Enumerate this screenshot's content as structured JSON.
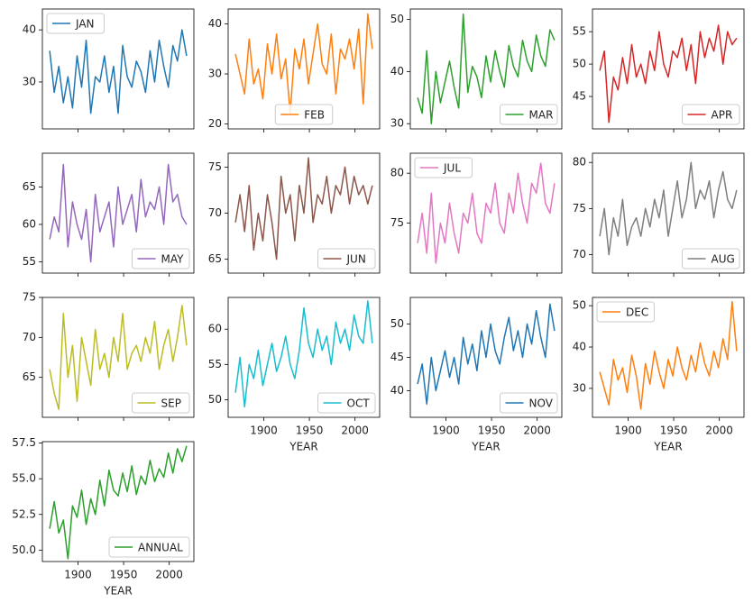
{
  "chart_data": [
    {
      "type": "line",
      "x": [
        1869,
        1874,
        1879,
        1884,
        1889,
        1894,
        1899,
        1904,
        1909,
        1914,
        1919,
        1924,
        1929,
        1934,
        1939,
        1944,
        1949,
        1954,
        1959,
        1964,
        1969,
        1974,
        1979,
        1984,
        1989,
        1994,
        1999,
        2004,
        2009,
        2014,
        2019
      ],
      "xlim": [
        1861,
        2027
      ],
      "xticks": [
        1900,
        1950,
        2000
      ],
      "ylim": [
        21,
        44
      ],
      "yticks": [
        30,
        40
      ],
      "legend": "upper left",
      "series": [
        {
          "name": "JAN",
          "color": "#1f77b4",
          "values": [
            36,
            28,
            33,
            26,
            31,
            25,
            35,
            29,
            38,
            24,
            31,
            30,
            35,
            28,
            33,
            24,
            37,
            31,
            29,
            34,
            32,
            28,
            36,
            30,
            38,
            33,
            29,
            37,
            34,
            40,
            35
          ]
        }
      ]
    },
    {
      "type": "line",
      "x": [
        1869,
        1874,
        1879,
        1884,
        1889,
        1894,
        1899,
        1904,
        1909,
        1914,
        1919,
        1924,
        1929,
        1934,
        1939,
        1944,
        1949,
        1954,
        1959,
        1964,
        1969,
        1974,
        1979,
        1984,
        1989,
        1994,
        1999,
        2004,
        2009,
        2014,
        2019
      ],
      "xlim": [
        1861,
        2027
      ],
      "xticks": [
        1900,
        1950,
        2000
      ],
      "ylim": [
        19,
        43
      ],
      "yticks": [
        20,
        30,
        40
      ],
      "legend": "lower center",
      "series": [
        {
          "name": "FEB",
          "color": "#ff7f0e",
          "values": [
            34,
            30,
            26,
            37,
            28,
            31,
            25,
            36,
            30,
            38,
            29,
            33,
            22,
            35,
            31,
            37,
            28,
            34,
            40,
            32,
            30,
            38,
            26,
            35,
            33,
            37,
            31,
            39,
            24,
            42,
            35
          ]
        }
      ]
    },
    {
      "type": "line",
      "x": [
        1869,
        1874,
        1879,
        1884,
        1889,
        1894,
        1899,
        1904,
        1909,
        1914,
        1919,
        1924,
        1929,
        1934,
        1939,
        1944,
        1949,
        1954,
        1959,
        1964,
        1969,
        1974,
        1979,
        1984,
        1989,
        1994,
        1999,
        2004,
        2009,
        2014,
        2019
      ],
      "xlim": [
        1861,
        2027
      ],
      "xticks": [
        1900,
        1950,
        2000
      ],
      "ylim": [
        29,
        52
      ],
      "yticks": [
        30,
        40,
        50
      ],
      "legend": "lower right",
      "series": [
        {
          "name": "MAR",
          "color": "#2ca02c",
          "values": [
            35,
            32,
            44,
            30,
            40,
            34,
            38,
            42,
            37,
            33,
            51,
            36,
            41,
            39,
            35,
            43,
            38,
            44,
            40,
            37,
            45,
            41,
            39,
            46,
            42,
            40,
            47,
            43,
            41,
            48,
            46
          ]
        }
      ]
    },
    {
      "type": "line",
      "x": [
        1869,
        1874,
        1879,
        1884,
        1889,
        1894,
        1899,
        1904,
        1909,
        1914,
        1919,
        1924,
        1929,
        1934,
        1939,
        1944,
        1949,
        1954,
        1959,
        1964,
        1969,
        1974,
        1979,
        1984,
        1989,
        1994,
        1999,
        2004,
        2009,
        2014,
        2019
      ],
      "xlim": [
        1861,
        2027
      ],
      "xticks": [
        1900,
        1950,
        2000
      ],
      "ylim": [
        40,
        58.5
      ],
      "yticks": [
        45,
        50,
        55
      ],
      "legend": "lower right",
      "series": [
        {
          "name": "APR",
          "color": "#d62728",
          "values": [
            49,
            52,
            41,
            48,
            46,
            51,
            47,
            53,
            48,
            50,
            47,
            52,
            49,
            55,
            50,
            48,
            52,
            51,
            54,
            49,
            53,
            47,
            55,
            51,
            54,
            52,
            56,
            50,
            55,
            53,
            54
          ]
        }
      ]
    },
    {
      "type": "line",
      "x": [
        1869,
        1874,
        1879,
        1884,
        1889,
        1894,
        1899,
        1904,
        1909,
        1914,
        1919,
        1924,
        1929,
        1934,
        1939,
        1944,
        1949,
        1954,
        1959,
        1964,
        1969,
        1974,
        1979,
        1984,
        1989,
        1994,
        1999,
        2004,
        2009,
        2014,
        2019
      ],
      "xlim": [
        1861,
        2027
      ],
      "xticks": [
        1900,
        1950,
        2000
      ],
      "ylim": [
        53.5,
        69.5
      ],
      "yticks": [
        55,
        60,
        65
      ],
      "legend": "lower right",
      "series": [
        {
          "name": "MAY",
          "color": "#9467bd",
          "values": [
            58,
            61,
            59,
            68,
            57,
            63,
            60,
            58,
            62,
            55,
            64,
            59,
            61,
            63,
            57,
            65,
            60,
            62,
            64,
            59,
            66,
            61,
            63,
            62,
            65,
            60,
            68,
            63,
            64,
            61,
            60
          ]
        }
      ]
    },
    {
      "type": "line",
      "x": [
        1869,
        1874,
        1879,
        1884,
        1889,
        1894,
        1899,
        1904,
        1909,
        1914,
        1919,
        1924,
        1929,
        1934,
        1939,
        1944,
        1949,
        1954,
        1959,
        1964,
        1969,
        1974,
        1979,
        1984,
        1989,
        1994,
        1999,
        2004,
        2009,
        2014,
        2019
      ],
      "xlim": [
        1861,
        2027
      ],
      "xticks": [
        1900,
        1950,
        2000
      ],
      "ylim": [
        63.5,
        76.5
      ],
      "yticks": [
        65,
        70,
        75
      ],
      "legend": "lower right",
      "series": [
        {
          "name": "JUN",
          "color": "#8c564b",
          "values": [
            69,
            72,
            68,
            73,
            66,
            70,
            67,
            72,
            69,
            65,
            74,
            70,
            72,
            67,
            73,
            70,
            76,
            69,
            72,
            71,
            74,
            70,
            73,
            72,
            75,
            71,
            74,
            72,
            73,
            71,
            73
          ]
        }
      ]
    },
    {
      "type": "line",
      "x": [
        1869,
        1874,
        1879,
        1884,
        1889,
        1894,
        1899,
        1904,
        1909,
        1914,
        1919,
        1924,
        1929,
        1934,
        1939,
        1944,
        1949,
        1954,
        1959,
        1964,
        1969,
        1974,
        1979,
        1984,
        1989,
        1994,
        1999,
        2004,
        2009,
        2014,
        2019
      ],
      "xlim": [
        1861,
        2027
      ],
      "xticks": [
        1900,
        1950,
        2000
      ],
      "ylim": [
        70,
        82
      ],
      "yticks": [
        75,
        80
      ],
      "legend": "upper left",
      "series": [
        {
          "name": "JUL",
          "color": "#e377c2",
          "values": [
            73,
            76,
            72,
            78,
            71,
            75,
            73,
            77,
            74,
            72,
            76,
            75,
            78,
            74,
            73,
            77,
            76,
            79,
            75,
            74,
            78,
            76,
            80,
            77,
            75,
            79,
            78,
            81,
            77,
            76,
            79
          ]
        }
      ]
    },
    {
      "type": "line",
      "x": [
        1869,
        1874,
        1879,
        1884,
        1889,
        1894,
        1899,
        1904,
        1909,
        1914,
        1919,
        1924,
        1929,
        1934,
        1939,
        1944,
        1949,
        1954,
        1959,
        1964,
        1969,
        1974,
        1979,
        1984,
        1989,
        1994,
        1999,
        2004,
        2009,
        2014,
        2019
      ],
      "xlim": [
        1861,
        2027
      ],
      "xticks": [
        1900,
        1950,
        2000
      ],
      "ylim": [
        68,
        81
      ],
      "yticks": [
        70,
        75,
        80
      ],
      "legend": "lower right",
      "series": [
        {
          "name": "AUG",
          "color": "#7f7f7f",
          "values": [
            72,
            75,
            70,
            74,
            72,
            76,
            71,
            73,
            74,
            72,
            75,
            73,
            76,
            74,
            77,
            72,
            75,
            78,
            74,
            76,
            80,
            75,
            77,
            76,
            78,
            74,
            77,
            79,
            76,
            75,
            77
          ]
        }
      ]
    },
    {
      "type": "line",
      "x": [
        1869,
        1874,
        1879,
        1884,
        1889,
        1894,
        1899,
        1904,
        1909,
        1914,
        1919,
        1924,
        1929,
        1934,
        1939,
        1944,
        1949,
        1954,
        1959,
        1964,
        1969,
        1974,
        1979,
        1984,
        1989,
        1994,
        1999,
        2004,
        2009,
        2014,
        2019
      ],
      "xlim": [
        1861,
        2027
      ],
      "xticks": [
        1900,
        1950,
        2000
      ],
      "ylim": [
        60,
        75
      ],
      "yticks": [
        65,
        70,
        75
      ],
      "legend": "lower right",
      "series": [
        {
          "name": "SEP",
          "color": "#bcbd22",
          "values": [
            66,
            63,
            61,
            73,
            65,
            69,
            62,
            70,
            67,
            64,
            71,
            66,
            68,
            65,
            70,
            67,
            73,
            66,
            68,
            69,
            67,
            70,
            68,
            72,
            66,
            69,
            71,
            67,
            70,
            74,
            69
          ]
        }
      ]
    },
    {
      "type": "line",
      "x": [
        1869,
        1874,
        1879,
        1884,
        1889,
        1894,
        1899,
        1904,
        1909,
        1914,
        1919,
        1924,
        1929,
        1934,
        1939,
        1944,
        1949,
        1954,
        1959,
        1964,
        1969,
        1974,
        1979,
        1984,
        1989,
        1994,
        1999,
        2004,
        2009,
        2014,
        2019
      ],
      "xlim": [
        1861,
        2027
      ],
      "xticks": [
        1900,
        1950,
        2000
      ],
      "xlabel": "YEAR",
      "ylim": [
        47.5,
        64.5
      ],
      "yticks": [
        50,
        55,
        60
      ],
      "legend": "lower right",
      "series": [
        {
          "name": "OCT",
          "color": "#17becf",
          "values": [
            51,
            56,
            49,
            55,
            53,
            57,
            52,
            55,
            58,
            54,
            56,
            59,
            55,
            53,
            57,
            63,
            58,
            56,
            60,
            57,
            59,
            55,
            61,
            58,
            60,
            57,
            62,
            59,
            58,
            64,
            58
          ]
        }
      ]
    },
    {
      "type": "line",
      "x": [
        1869,
        1874,
        1879,
        1884,
        1889,
        1894,
        1899,
        1904,
        1909,
        1914,
        1919,
        1924,
        1929,
        1934,
        1939,
        1944,
        1949,
        1954,
        1959,
        1964,
        1969,
        1974,
        1979,
        1984,
        1989,
        1994,
        1999,
        2004,
        2009,
        2014,
        2019
      ],
      "xlim": [
        1861,
        2027
      ],
      "xticks": [
        1900,
        1950,
        2000
      ],
      "xlabel": "YEAR",
      "ylim": [
        36,
        54
      ],
      "yticks": [
        40,
        45,
        50
      ],
      "legend": "lower right",
      "series": [
        {
          "name": "NOV",
          "color": "#1f77b4",
          "values": [
            41,
            44,
            38,
            45,
            40,
            43,
            46,
            42,
            45,
            41,
            48,
            44,
            47,
            43,
            49,
            45,
            50,
            46,
            44,
            48,
            51,
            46,
            49,
            45,
            50,
            47,
            52,
            48,
            45,
            53,
            49
          ]
        }
      ]
    },
    {
      "type": "line",
      "x": [
        1869,
        1874,
        1879,
        1884,
        1889,
        1894,
        1899,
        1904,
        1909,
        1914,
        1919,
        1924,
        1929,
        1934,
        1939,
        1944,
        1949,
        1954,
        1959,
        1964,
        1969,
        1974,
        1979,
        1984,
        1989,
        1994,
        1999,
        2004,
        2009,
        2014,
        2019
      ],
      "xlim": [
        1861,
        2027
      ],
      "xticks": [
        1900,
        1950,
        2000
      ],
      "xlabel": "YEAR",
      "ylim": [
        23,
        52
      ],
      "yticks": [
        30,
        40,
        50
      ],
      "legend": "upper left",
      "series": [
        {
          "name": "DEC",
          "color": "#ff7f0e",
          "values": [
            34,
            30,
            26,
            37,
            32,
            35,
            29,
            38,
            33,
            25,
            36,
            31,
            39,
            34,
            30,
            37,
            33,
            40,
            35,
            32,
            38,
            34,
            41,
            36,
            33,
            39,
            35,
            42,
            37,
            51,
            39
          ]
        }
      ]
    },
    {
      "type": "line",
      "x": [
        1869,
        1874,
        1879,
        1884,
        1889,
        1894,
        1899,
        1904,
        1909,
        1914,
        1919,
        1924,
        1929,
        1934,
        1939,
        1944,
        1949,
        1954,
        1959,
        1964,
        1969,
        1974,
        1979,
        1984,
        1989,
        1994,
        1999,
        2004,
        2009,
        2014,
        2019
      ],
      "xlim": [
        1861,
        2027
      ],
      "xticks": [
        1900,
        1950,
        2000
      ],
      "xlabel": "YEAR",
      "ylim": [
        49.2,
        57.6
      ],
      "yticks": [
        {
          "value": 50,
          "label": "50.0"
        },
        52.5,
        {
          "value": 55,
          "label": "55.0"
        },
        57.5
      ],
      "legend": "lower right",
      "series": [
        {
          "name": "ANNUAL",
          "color": "#2ca02c",
          "values": [
            51.5,
            53.4,
            51.2,
            52.1,
            49.4,
            53.1,
            52.3,
            54.2,
            51.8,
            53.6,
            52.5,
            54.9,
            53.1,
            55.6,
            54.2,
            53.8,
            55.4,
            54.1,
            55.9,
            53.9,
            55.2,
            54.6,
            56.3,
            54.8,
            55.7,
            55.1,
            56.8,
            55.4,
            57.1,
            56.2,
            57.3
          ]
        }
      ]
    }
  ]
}
